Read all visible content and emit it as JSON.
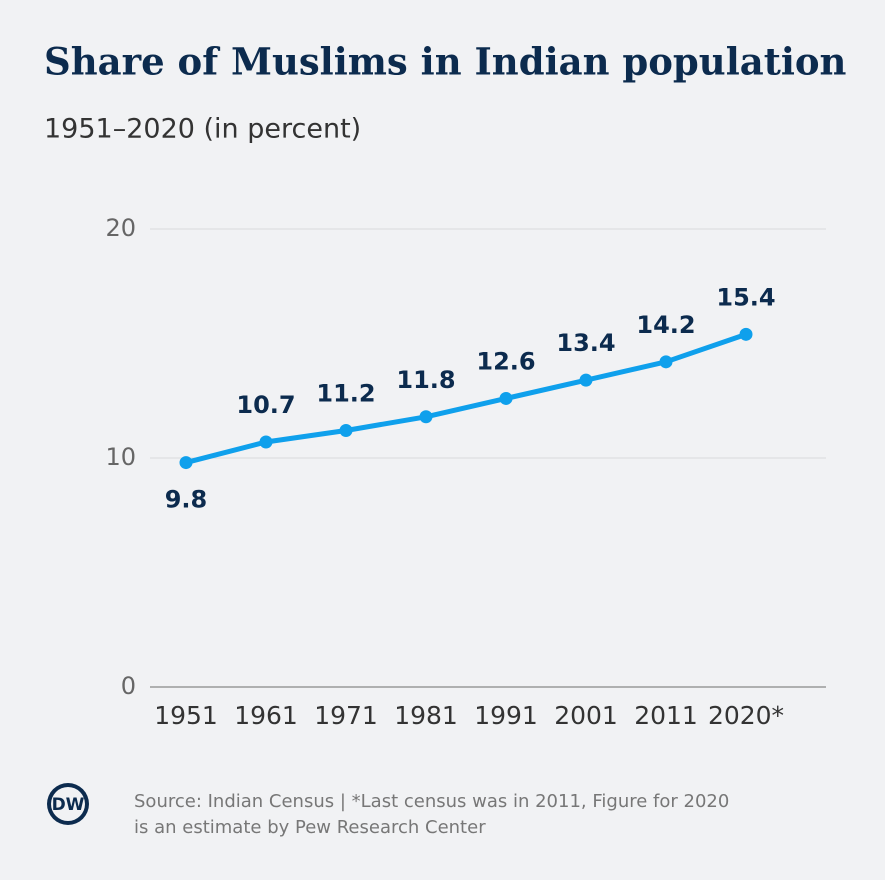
{
  "chart_data": {
    "type": "line",
    "title": "Share of Muslims in Indian population",
    "subtitle": "1951–2020 (in percent)",
    "categories": [
      "1951",
      "1961",
      "1971",
      "1981",
      "1991",
      "2001",
      "2011",
      "2020*"
    ],
    "series": [
      {
        "name": "Share of Muslims",
        "color": "#0fa0ec",
        "values": [
          9.8,
          10.7,
          11.2,
          11.8,
          12.6,
          13.4,
          14.2,
          15.4
        ]
      }
    ],
    "ylim": [
      0,
      20
    ],
    "yticks": [
      0,
      10,
      20
    ],
    "grid": true,
    "source": [
      "Source: Indian Census | *Last census was in 2011, Figure for 2020",
      "is an estimate by Pew Research Center"
    ],
    "logo": "DW"
  }
}
